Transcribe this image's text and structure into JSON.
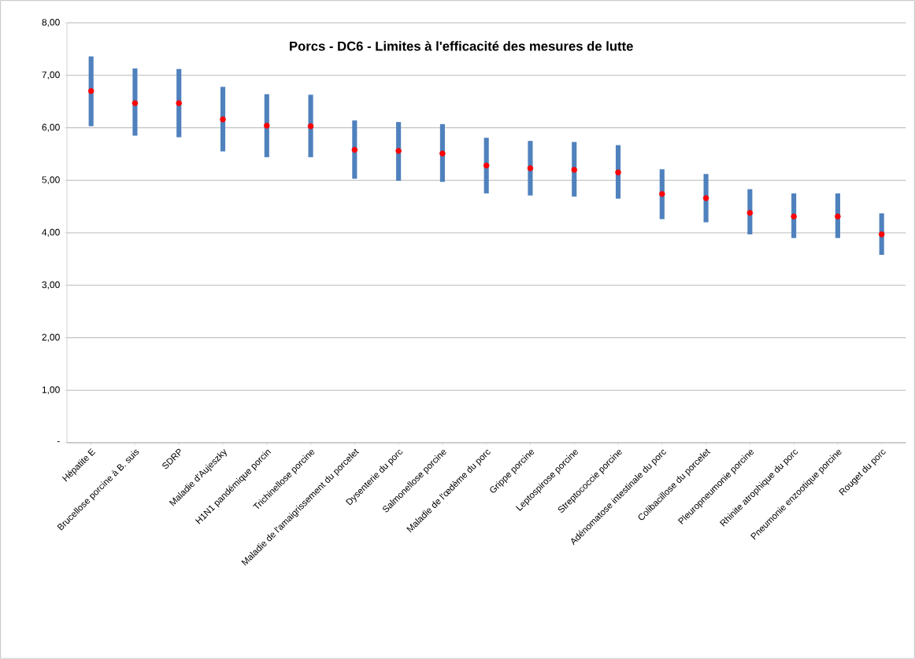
{
  "chart_data": {
    "type": "bar",
    "title": "Porcs - DC6 - Limites à l'efficacité des mesures de lutte",
    "categories": [
      "Hépatite E",
      "Brucellose porcine à B. suis",
      "SDRP",
      "Maladie d'Aujeszky",
      "H1N1 pandémique porcin",
      "Trichinellose porcine",
      "Maladie de l'amaigrissement du porcelet",
      "Dysenterie du porc",
      "Salmonellose porcine",
      "Maladie de l'œdème du porc",
      "Grippe porcine",
      "Leptospirose porcine",
      "Streptococcie porcine",
      "Adénomatose intestinale du porc",
      "Colibacillose du porcelet",
      "Pleuropneumonie porcine",
      "Rhinite atrophique du porc",
      "Pneumonie enzootique porcine",
      "Rouget du porc"
    ],
    "series": [
      {
        "color": "#4f81bd",
        "base": [
          6.03,
          5.85,
          5.82,
          5.55,
          5.44,
          5.44,
          5.03,
          4.99,
          4.97,
          4.75,
          4.71,
          4.69,
          4.65,
          4.26,
          4.2,
          3.97,
          3.9,
          3.9,
          3.58
        ],
        "values": [
          1.33,
          1.28,
          1.3,
          1.23,
          1.2,
          1.19,
          1.11,
          1.12,
          1.1,
          1.06,
          1.04,
          1.04,
          1.02,
          0.95,
          0.92,
          0.86,
          0.85,
          0.85,
          0.79
        ]
      },
      {
        "type": "scatter",
        "color": "#ff0000",
        "values": [
          6.7,
          6.47,
          6.47,
          6.16,
          6.04,
          6.03,
          5.58,
          5.56,
          5.51,
          5.28,
          5.23,
          5.2,
          5.15,
          4.74,
          4.66,
          4.38,
          4.31,
          4.31,
          3.97
        ]
      }
    ],
    "ylim": [
      0,
      8
    ],
    "yticks": [
      {
        "value": 0,
        "label": "-"
      },
      {
        "value": 1,
        "label": "1,00"
      },
      {
        "value": 2,
        "label": "2,00"
      },
      {
        "value": 3,
        "label": "3,00"
      },
      {
        "value": 4,
        "label": "4,00"
      },
      {
        "value": 5,
        "label": "5,00"
      },
      {
        "value": 6,
        "label": "6,00"
      },
      {
        "value": 7,
        "label": "7,00"
      },
      {
        "value": 8,
        "label": "8,00"
      }
    ],
    "grid": "y",
    "legend": false,
    "marker": "circle"
  }
}
